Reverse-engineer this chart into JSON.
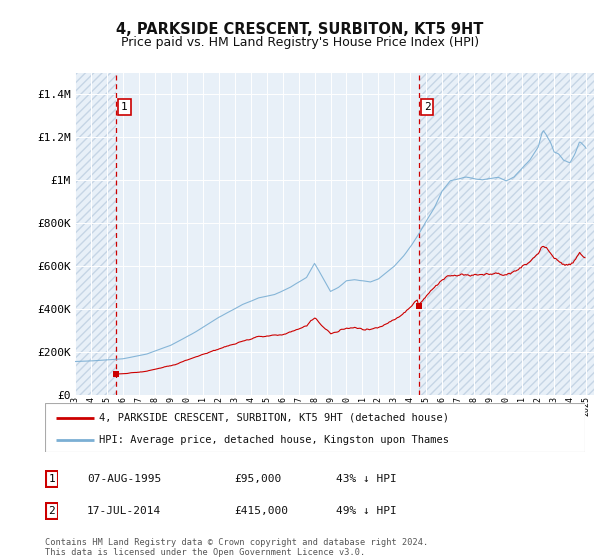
{
  "title": "4, PARKSIDE CRESCENT, SURBITON, KT5 9HT",
  "subtitle": "Price paid vs. HM Land Registry's House Price Index (HPI)",
  "title_fontsize": 10.5,
  "subtitle_fontsize": 9,
  "background_color": "#ffffff",
  "plot_bg_color": "#e8f0f8",
  "hatch_color": "#c5d5e5",
  "grid_color": "#ffffff",
  "ylim": [
    0,
    1500000
  ],
  "yticks": [
    0,
    200000,
    400000,
    600000,
    800000,
    1000000,
    1200000,
    1400000
  ],
  "ytick_labels": [
    "£0",
    "£200K",
    "£400K",
    "£600K",
    "£800K",
    "£1M",
    "£1.2M",
    "£1.4M"
  ],
  "hpi_color": "#7bafd4",
  "price_color": "#cc0000",
  "vline_color": "#cc0000",
  "purchase1_year": 1995.58,
  "purchase1_price": 95000,
  "purchase2_year": 2014.54,
  "purchase2_price": 415000,
  "legend_line1": "4, PARKSIDE CRESCENT, SURBITON, KT5 9HT (detached house)",
  "legend_line2": "HPI: Average price, detached house, Kingston upon Thames",
  "table_row1": [
    "1",
    "07-AUG-1995",
    "£95,000",
    "43% ↓ HPI"
  ],
  "table_row2": [
    "2",
    "17-JUL-2014",
    "£415,000",
    "49% ↓ HPI"
  ],
  "footnote": "Contains HM Land Registry data © Crown copyright and database right 2024.\nThis data is licensed under the Open Government Licence v3.0.",
  "xmin": 1993.0,
  "xmax": 2025.5
}
